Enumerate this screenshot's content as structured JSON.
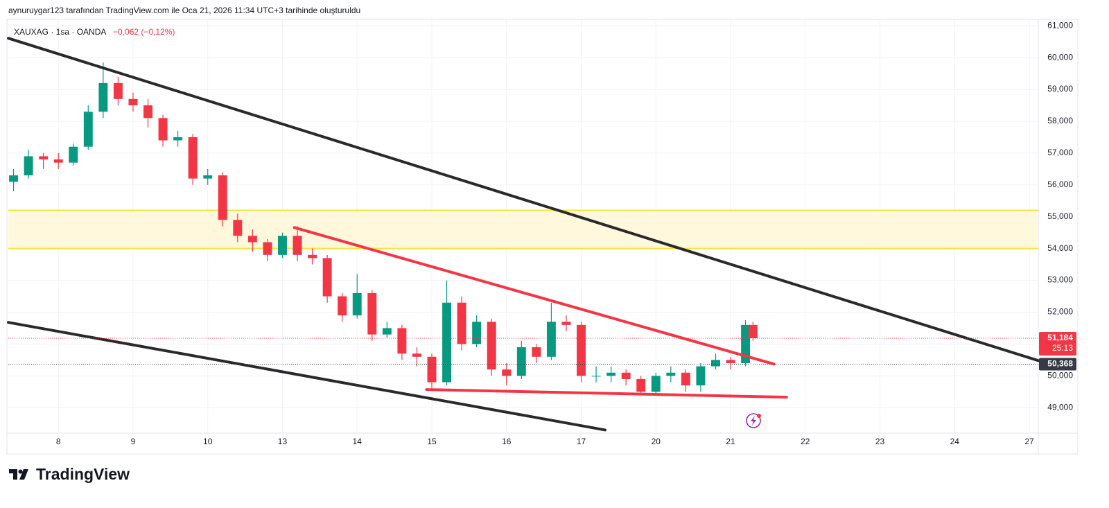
{
  "header": {
    "caption": "aynuruygar123 tarafından TradingView.com ile Oca 21, 2026 11:34 UTC+3 tarihinde oluşturuldu"
  },
  "chart_data": {
    "type": "candlestick",
    "symbol_info": "XAUXAG · 1sa · OANDA",
    "change": "−0,062 (−0,12%)",
    "up_color": "#089981",
    "down_color": "#f23645",
    "x": [
      -0.6,
      -0.4,
      -0.2,
      0,
      0.2,
      0.4,
      0.6,
      0.8,
      1,
      1.2,
      1.4,
      1.6,
      1.8,
      2,
      2.2,
      2.4,
      2.6,
      2.8,
      3,
      3.2,
      3.4,
      3.6,
      3.8,
      4,
      4.2,
      4.4,
      4.6,
      4.8,
      5,
      5.2,
      5.4,
      5.6,
      5.8,
      6,
      6.2,
      6.4,
      6.6,
      6.8,
      7,
      7.2,
      7.4,
      7.6,
      7.8,
      8,
      8.2,
      8.4,
      8.6,
      8.8,
      9,
      9.2,
      9.3
    ],
    "open": [
      56100,
      56300,
      56900,
      56800,
      56700,
      57200,
      58300,
      59200,
      58700,
      58500,
      58100,
      57400,
      57500,
      56200,
      56300,
      54900,
      54400,
      54200,
      53800,
      54400,
      53800,
      53700,
      52500,
      51900,
      52600,
      51300,
      51500,
      50700,
      50600,
      49800,
      52300,
      51000,
      51700,
      50200,
      50000,
      50900,
      50600,
      51700,
      51600,
      50000,
      50000,
      50100,
      49900,
      49500,
      50000,
      50100,
      49700,
      50300,
      50500,
      50400,
      51600
    ],
    "high": [
      56500,
      57100,
      57000,
      57000,
      57300,
      58500,
      59850,
      59400,
      58900,
      58700,
      58200,
      57700,
      57600,
      56500,
      56400,
      55100,
      54600,
      54300,
      54500,
      54700,
      54000,
      53800,
      52600,
      53200,
      52700,
      51700,
      51600,
      50900,
      50700,
      53000,
      52500,
      51900,
      51800,
      50400,
      51100,
      51000,
      52300,
      51900,
      51700,
      50300,
      50300,
      50200,
      50000,
      50100,
      50300,
      50200,
      50400,
      50700,
      50600,
      51750,
      51700
    ],
    "low": [
      55800,
      56200,
      56500,
      56500,
      56600,
      57100,
      58100,
      58500,
      58300,
      57800,
      57200,
      57200,
      56000,
      56000,
      54700,
      54200,
      53900,
      53600,
      53700,
      53600,
      53500,
      52300,
      51700,
      51800,
      51100,
      51200,
      50500,
      50300,
      49600,
      49700,
      50800,
      50900,
      50000,
      49700,
      49900,
      50400,
      50500,
      51400,
      49800,
      49800,
      49800,
      49700,
      49400,
      49400,
      49800,
      49500,
      49500,
      50200,
      50200,
      50300,
      51100
    ],
    "close": [
      56300,
      56900,
      56800,
      56700,
      57200,
      58300,
      59200,
      58700,
      58500,
      58100,
      57400,
      57500,
      56200,
      56300,
      54900,
      54400,
      54200,
      53800,
      54400,
      53800,
      53700,
      52500,
      51900,
      52600,
      51300,
      51500,
      50700,
      50600,
      49800,
      52300,
      51000,
      51700,
      50200,
      50000,
      50900,
      50600,
      51700,
      51600,
      50000,
      50000,
      50100,
      49900,
      49500,
      50000,
      50100,
      49700,
      50300,
      50500,
      50400,
      51600,
      51184
    ],
    "xlim": [
      -0.67,
      13.12
    ],
    "ylim": [
      48200,
      61200
    ],
    "xticks": [
      {
        "value": 0,
        "label": "8"
      },
      {
        "value": 1,
        "label": "9"
      },
      {
        "value": 2,
        "label": "10"
      },
      {
        "value": 3,
        "label": "13"
      },
      {
        "value": 4,
        "label": "14"
      },
      {
        "value": 5,
        "label": "15"
      },
      {
        "value": 6,
        "label": "16"
      },
      {
        "value": 7,
        "label": "17"
      },
      {
        "value": 8,
        "label": "20"
      },
      {
        "value": 9,
        "label": "21"
      },
      {
        "value": 10,
        "label": "22"
      },
      {
        "value": 11,
        "label": "23"
      },
      {
        "value": 12,
        "label": "24"
      },
      {
        "value": 13,
        "label": "27"
      }
    ],
    "yticks": [
      {
        "value": 49000,
        "label": "49,000"
      },
      {
        "value": 50000,
        "label": "50,000"
      },
      {
        "value": 51000,
        "label": "51,000"
      },
      {
        "value": 52000,
        "label": "52,000"
      },
      {
        "value": 53000,
        "label": "53,000"
      },
      {
        "value": 54000,
        "label": "54,000"
      },
      {
        "value": 55000,
        "label": "55,000"
      },
      {
        "value": 56000,
        "label": "56,000"
      },
      {
        "value": 57000,
        "label": "57,000"
      },
      {
        "value": 58000,
        "label": "58,000"
      },
      {
        "value": 59000,
        "label": "59,000"
      },
      {
        "value": 60000,
        "label": "60,000"
      },
      {
        "value": 61000,
        "label": "61,000"
      }
    ],
    "grid": true,
    "zone": {
      "range": [
        54000,
        55200
      ],
      "fill": "#fff8dc",
      "line_color": "#f5e43a"
    },
    "trendlines": [
      {
        "color": "#2a2a2a",
        "x": [
          -0.67,
          13.12
        ],
        "y": [
          60608,
          50480
        ]
      },
      {
        "color": "#2a2a2a",
        "x": [
          -0.67,
          7.32
        ],
        "y": [
          51680,
          48300
        ]
      },
      {
        "color": "#f23645",
        "x": [
          3.16,
          9.58
        ],
        "y": [
          54660,
          50370
        ]
      },
      {
        "color": "#f23645",
        "x": [
          4.93,
          9.75
        ],
        "y": [
          49570,
          49330
        ]
      }
    ],
    "price_lines": [
      {
        "value": 51184,
        "label": "51,184",
        "countdown": "25:13",
        "color": "#f23645"
      },
      {
        "value": 50368,
        "label": "50,368",
        "color": "#363a45"
      }
    ]
  },
  "footer": {
    "logo": "TradingView"
  }
}
